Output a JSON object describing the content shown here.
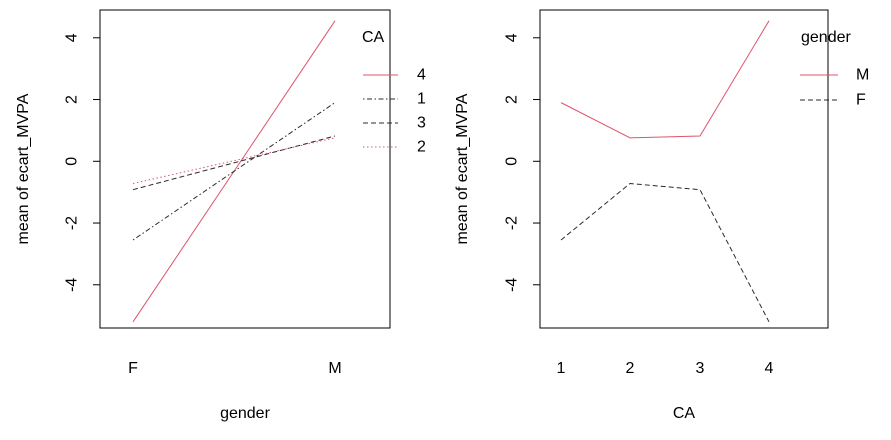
{
  "chart_data": [
    {
      "type": "line",
      "categories": [
        "F",
        "M"
      ],
      "xlabel": "gender",
      "ylabel": "mean of  ecart_MVPA",
      "ylim": [
        -5.4,
        4.9
      ],
      "yticks": [
        -4,
        -2,
        0,
        2,
        4
      ],
      "grid": false,
      "legend": {
        "title": "CA",
        "placement": "top-right",
        "order": [
          "4",
          "1",
          "3",
          "2"
        ]
      },
      "series": [
        {
          "name": "4",
          "values": [
            -5.2,
            4.55
          ],
          "color": "#DF536B",
          "dash": "solid"
        },
        {
          "name": "1",
          "values": [
            -2.55,
            1.9
          ],
          "color": "#2B2B2B",
          "dash": "dotdash"
        },
        {
          "name": "3",
          "values": [
            -0.92,
            0.82
          ],
          "color": "#2B2B2B",
          "dash": "dashed"
        },
        {
          "name": "2",
          "values": [
            -0.72,
            0.76
          ],
          "color": "#DF536B",
          "dash": "dotted"
        }
      ]
    },
    {
      "type": "line",
      "categories": [
        "1",
        "2",
        "3",
        "4"
      ],
      "xlabel": "CA",
      "ylabel": "mean of  ecart_MVPA",
      "ylim": [
        -5.4,
        4.9
      ],
      "yticks": [
        -4,
        -2,
        0,
        2,
        4
      ],
      "grid": false,
      "legend": {
        "title": "gender",
        "placement": "top-right",
        "order": [
          "M",
          "F"
        ]
      },
      "series": [
        {
          "name": "M",
          "values": [
            1.9,
            0.76,
            0.82,
            4.55
          ],
          "color": "#DF536B",
          "dash": "solid"
        },
        {
          "name": "F",
          "values": [
            -2.55,
            -0.72,
            -0.92,
            -5.2
          ],
          "color": "#2B2B2B",
          "dash": "dashed"
        }
      ]
    }
  ]
}
